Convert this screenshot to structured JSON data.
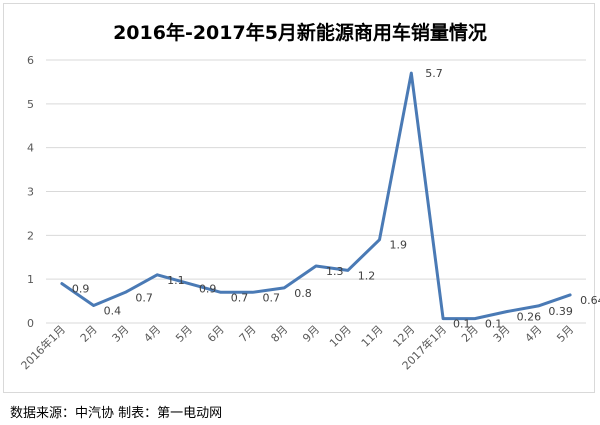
{
  "chart_data": {
    "type": "line",
    "title": "2016年-2017年5月新能源商用车销量情况",
    "categories": [
      "2016年1月",
      "2月",
      "3月",
      "4月",
      "5月",
      "6月",
      "7月",
      "8月",
      "9月",
      "10月",
      "11月",
      "12月",
      "2017年1月",
      "2月",
      "3月",
      "4月",
      "5月"
    ],
    "series": [
      {
        "values": [
          0.9,
          0.4,
          0.7,
          1.1,
          0.9,
          0.7,
          0.7,
          0.8,
          1.3,
          1.2,
          1.9,
          5.7,
          0.1,
          0.1,
          0.26,
          0.39,
          0.64
        ]
      }
    ],
    "data_labels": [
      "0.9",
      "0.4",
      "0.7",
      "1.1",
      "0.9",
      "0.7",
      "0.7",
      "0.8",
      "1.3",
      "1.2",
      "1.9",
      "5.7",
      "0.1",
      "0.1",
      "0.26",
      "0.39",
      "0.64"
    ],
    "y_ticks": [
      "0",
      "1",
      "2",
      "3",
      "4",
      "5",
      "6"
    ],
    "ylim": [
      0,
      6
    ],
    "grid": true,
    "line_color": "#4a7ab5",
    "grid_color": "#d9d9d9"
  },
  "footer": {
    "source": "数据来源：中汽协 制表：第一电动网"
  }
}
